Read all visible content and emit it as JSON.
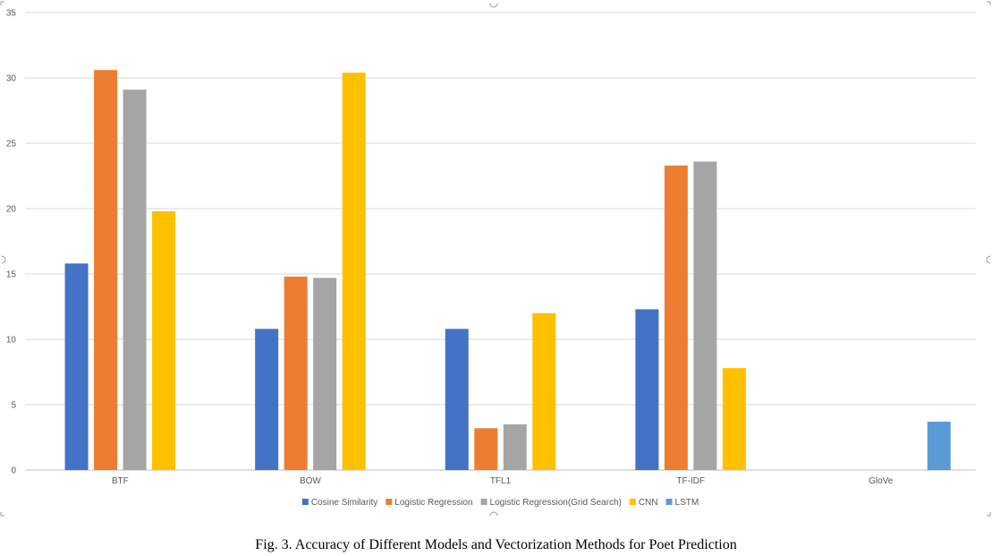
{
  "chart_data": {
    "type": "bar",
    "categories": [
      "BTF",
      "BOW",
      "TFL1",
      "TF-IDF",
      "GloVe"
    ],
    "series": [
      {
        "name": "Cosine Similarity",
        "color": "#4472C4",
        "values": [
          15.8,
          10.8,
          10.8,
          12.3,
          null
        ]
      },
      {
        "name": "Logistic Regression",
        "color": "#ED7D31",
        "values": [
          30.6,
          14.8,
          3.2,
          23.3,
          null
        ]
      },
      {
        "name": "Logistic Regression(Grid Search)",
        "color": "#A5A5A5",
        "values": [
          29.1,
          14.7,
          3.5,
          23.6,
          null
        ]
      },
      {
        "name": "CNN",
        "color": "#FFC000",
        "values": [
          19.8,
          30.4,
          12.0,
          7.8,
          null
        ]
      },
      {
        "name": "LSTM",
        "color": "#5B9BD5",
        "values": [
          null,
          null,
          null,
          null,
          3.7
        ]
      }
    ],
    "yticks": [
      "0",
      "5",
      "10",
      "15",
      "20",
      "25",
      "30",
      "35"
    ],
    "ylim": [
      0,
      35
    ],
    "grid": true,
    "legend_position": "bottom"
  },
  "caption": "Fig. 3.  Accuracy of Different Models and Vectorization Methods for Poet Prediction"
}
